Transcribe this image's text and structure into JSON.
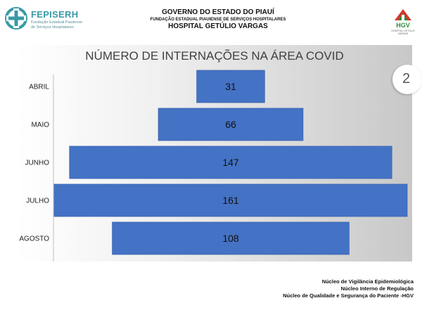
{
  "header": {
    "org_brand": "FEPISERH",
    "org_brand_sub": "Fundação Estadual Piauiense de Serviços Hospitalares",
    "line1": "GOVERNO DO ESTADO DO PIAUÍ",
    "line2": "FUNDAÇÃO ESTADUAL PIAUIENSE DE SERVIÇOS HOSPITALARES",
    "line3": "HOSPITAL GETÚLIO VARGAS",
    "hospital_logo": "HGV",
    "hospital_logo_sub": "HOSPITAL GETÚLIO VARGAS"
  },
  "page_number": "2",
  "chart_data": {
    "type": "bar",
    "orientation": "horizontal",
    "bar_alignment": "centered",
    "title": "NÚMERO DE INTERNAÇÕES NA ÁREA COVID",
    "categories": [
      "ABRIL",
      "MAIO",
      "JUNHO",
      "JULHO",
      "AGOSTO"
    ],
    "values": [
      31,
      66,
      147,
      161,
      108
    ],
    "bar_labels": [
      "31",
      "66",
      "147",
      "161",
      "108"
    ],
    "bar_color": "#4472c4",
    "legend": "none",
    "grid": false
  },
  "footer": {
    "lines": [
      "Núcleo de Vigilância Epidemiológica",
      "Núcleo Interno de Regulação",
      "Núcleo de Qualidade e Segurança do Paciente -HGV"
    ]
  }
}
